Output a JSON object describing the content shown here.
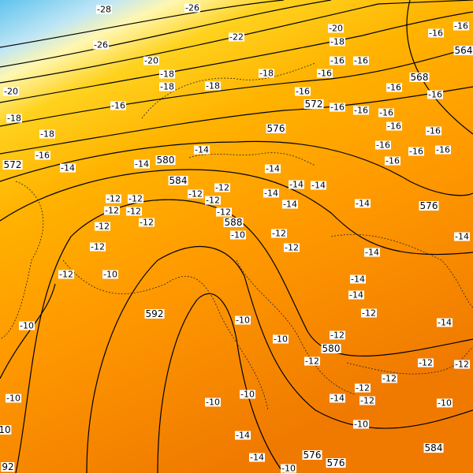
{
  "map": {
    "colors": {
      "cold": "#5fc3ee",
      "cool": "#bfe6f5",
      "pale": "#fff7b0",
      "yellow": "#ffd21e",
      "amber": "#ffb300",
      "orange": "#ff9a00",
      "deep_orange": "#f07a00",
      "contour": "#000000"
    },
    "labels": [
      "-28",
      "-26",
      "-26",
      "-20",
      "-22",
      "-20",
      "-18",
      "-16",
      "-16",
      "564",
      "-20",
      "-18",
      "-18",
      "-18",
      "-18",
      "-16",
      "-16",
      "-16",
      "568",
      "-16",
      "-16",
      "-16",
      "572",
      "-16",
      "-16",
      "-16",
      "-18",
      "-16",
      "-18",
      "576",
      "-16",
      "-16",
      "-16",
      "-16",
      "-16",
      "-16",
      "572",
      "-16",
      "-14",
      "-14",
      "580",
      "-14",
      "-14",
      "584",
      "-12",
      "-12",
      "-14",
      "-14",
      "-14",
      "-14",
      "-12",
      "-12",
      "-12",
      "-12",
      "-12",
      "-12",
      "-14",
      "576",
      "-12",
      "-12",
      "588",
      "-10",
      "-12",
      "-12",
      "-12",
      "-14",
      "-14",
      "-12",
      "-10",
      "-14",
      "-14",
      "592",
      "-10",
      "-10",
      "-12",
      "-14",
      "-10",
      "-12",
      "580",
      "-12",
      "-12",
      "-12",
      "-12",
      "-12",
      "-10",
      "-10",
      "-10",
      "-14",
      "-12",
      "-10",
      "-10",
      "10",
      "-14",
      "584",
      "-14",
      "576",
      "576",
      "-10",
      "92"
    ]
  }
}
